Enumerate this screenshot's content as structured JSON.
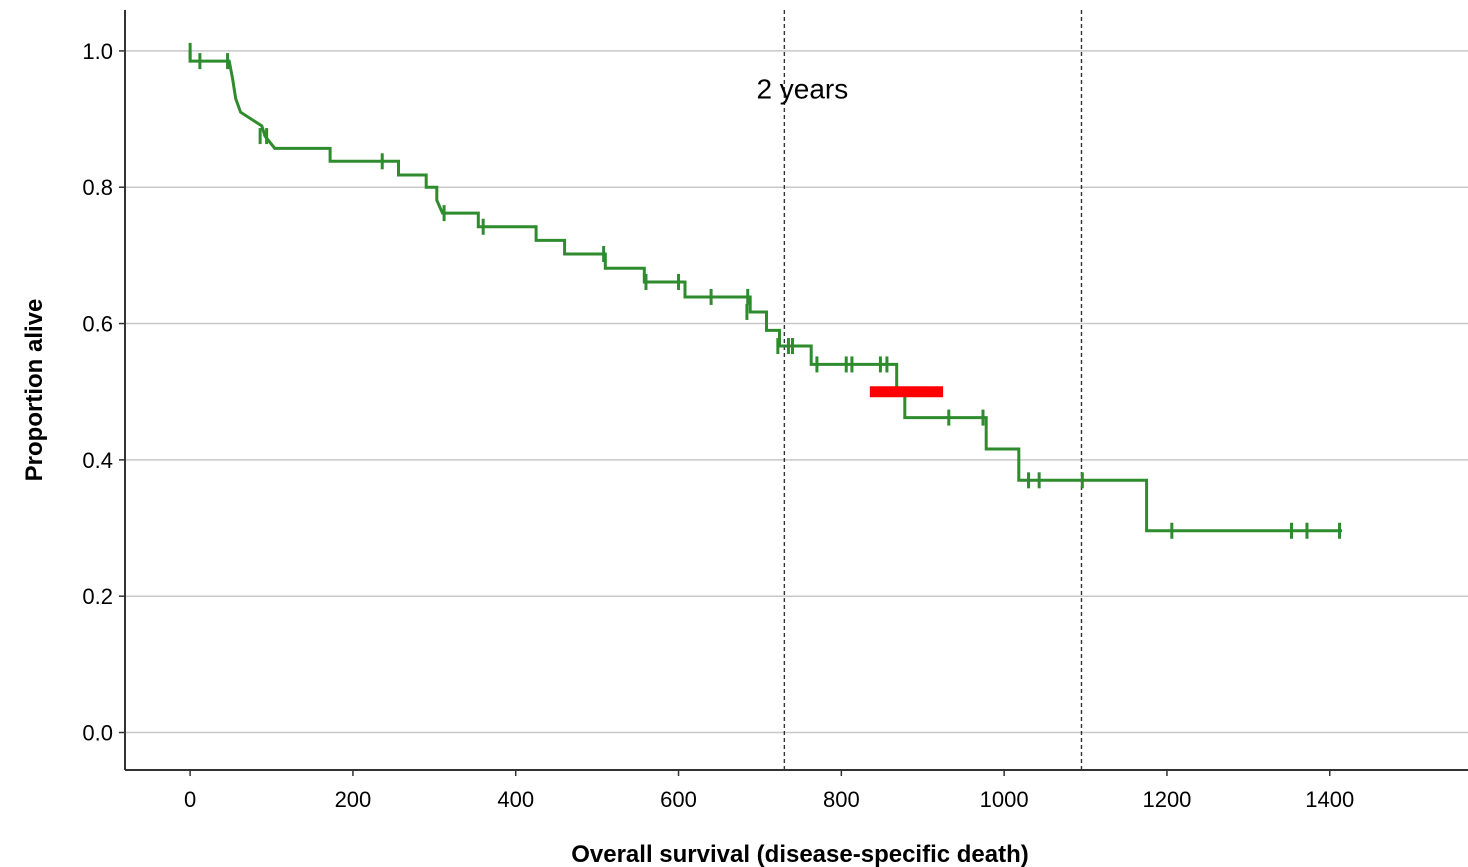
{
  "chart_data": {
    "type": "line",
    "xlabel": "Overall survival (disease-specific death)",
    "ylabel": "Proportion alive",
    "xlim": [
      -80,
      1560
    ],
    "ylim": [
      -0.055,
      1.06
    ],
    "x_ticks": [
      0,
      200,
      400,
      600,
      800,
      1000,
      1200,
      1400
    ],
    "y_ticks": [
      0.0,
      0.2,
      0.4,
      0.6,
      0.8,
      1.0
    ],
    "y_tick_labels": [
      "0.0",
      "0.2",
      "0.4",
      "0.6",
      "0.8",
      "1.0"
    ],
    "grid": "horizontal",
    "annotations": [
      {
        "text": "2 years",
        "x": 730,
        "y": 0.945
      }
    ],
    "reference_lines": [
      {
        "x": 730,
        "style": "dashed"
      },
      {
        "x": 1095,
        "style": "dashed"
      }
    ],
    "highlight_segment": {
      "x_start": 835,
      "x_end": 925,
      "y": 0.5,
      "color": "#ff0000"
    },
    "series": [
      {
        "color": "#2e8b2e",
        "steps": [
          [
            0,
            1.0
          ],
          [
            0,
            0.985
          ],
          [
            48,
            0.985
          ],
          [
            52,
            0.96
          ],
          [
            56,
            0.93
          ],
          [
            62,
            0.91
          ],
          [
            88,
            0.89
          ],
          [
            92,
            0.875
          ],
          [
            104,
            0.857
          ],
          [
            172,
            0.857
          ],
          [
            172,
            0.838
          ],
          [
            256,
            0.838
          ],
          [
            256,
            0.818
          ],
          [
            290,
            0.818
          ],
          [
            290,
            0.8
          ],
          [
            303,
            0.8
          ],
          [
            303,
            0.781
          ],
          [
            310,
            0.762
          ],
          [
            354,
            0.762
          ],
          [
            354,
            0.742
          ],
          [
            425,
            0.742
          ],
          [
            425,
            0.722
          ],
          [
            460,
            0.722
          ],
          [
            460,
            0.702
          ],
          [
            510,
            0.702
          ],
          [
            510,
            0.681
          ],
          [
            558,
            0.681
          ],
          [
            558,
            0.661
          ],
          [
            608,
            0.661
          ],
          [
            608,
            0.639
          ],
          [
            688,
            0.639
          ],
          [
            688,
            0.617
          ],
          [
            708,
            0.617
          ],
          [
            708,
            0.59
          ],
          [
            724,
            0.59
          ],
          [
            724,
            0.567
          ],
          [
            763,
            0.567
          ],
          [
            763,
            0.54
          ],
          [
            868,
            0.54
          ],
          [
            868,
            0.5
          ],
          [
            878,
            0.5
          ],
          [
            878,
            0.462
          ],
          [
            978,
            0.462
          ],
          [
            978,
            0.416
          ],
          [
            1018,
            0.416
          ],
          [
            1018,
            0.37
          ],
          [
            1175,
            0.37
          ],
          [
            1175,
            0.296
          ],
          [
            1415,
            0.296
          ]
        ],
        "censored": [
          [
            0,
            1.0
          ],
          [
            12,
            0.985
          ],
          [
            46,
            0.985
          ],
          [
            86,
            0.875
          ],
          [
            94,
            0.875
          ],
          [
            236,
            0.838
          ],
          [
            312,
            0.762
          ],
          [
            360,
            0.742
          ],
          [
            508,
            0.702
          ],
          [
            560,
            0.661
          ],
          [
            600,
            0.661
          ],
          [
            640,
            0.639
          ],
          [
            685,
            0.639
          ],
          [
            684,
            0.617
          ],
          [
            722,
            0.567
          ],
          [
            735,
            0.567
          ],
          [
            740,
            0.567
          ],
          [
            770,
            0.54
          ],
          [
            806,
            0.54
          ],
          [
            813,
            0.54
          ],
          [
            848,
            0.54
          ],
          [
            856,
            0.54
          ],
          [
            932,
            0.462
          ],
          [
            974,
            0.462
          ],
          [
            1030,
            0.37
          ],
          [
            1043,
            0.37
          ],
          [
            1096,
            0.37
          ],
          [
            1206,
            0.296
          ],
          [
            1353,
            0.296
          ],
          [
            1372,
            0.296
          ],
          [
            1412,
            0.296
          ]
        ]
      }
    ]
  }
}
